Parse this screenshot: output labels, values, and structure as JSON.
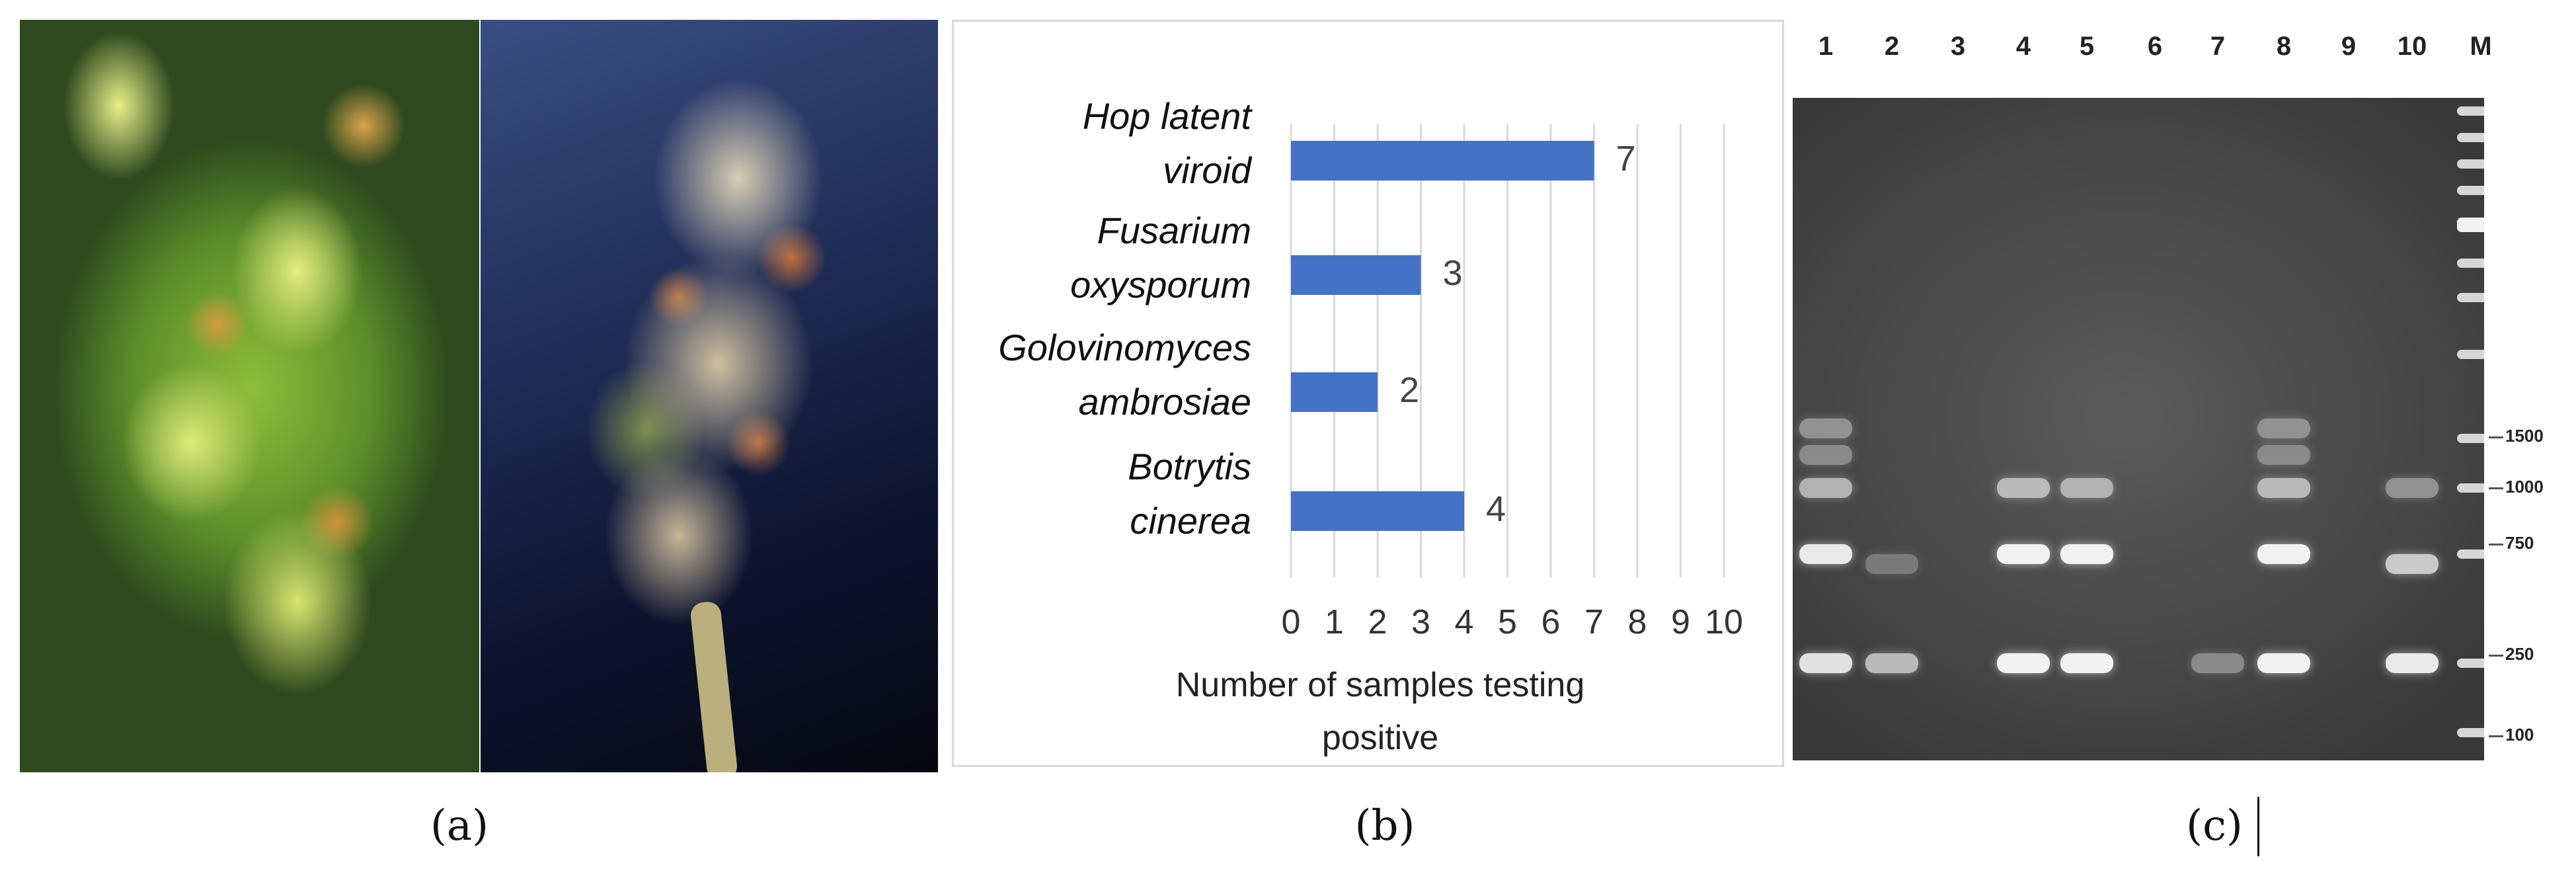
{
  "panel_a": {
    "caption": "(a)",
    "photos": [
      "cannabis-plant-photo",
      "dried-bud-photo"
    ]
  },
  "panel_b": {
    "caption": "(b)",
    "chart_data": {
      "type": "bar",
      "orientation": "horizontal",
      "categories": [
        [
          "Hop latent",
          "viroid"
        ],
        [
          "Fusarium",
          "oxysporum"
        ],
        [
          "Golovinomyces",
          "ambrosiae"
        ],
        [
          "Botrytis",
          "cinerea"
        ]
      ],
      "values": [
        7,
        3,
        2,
        4
      ],
      "data_labels": [
        "7",
        "3",
        "2",
        "4"
      ],
      "xlabel": [
        "Number of samples testing",
        "positive"
      ],
      "xlim": [
        0,
        10
      ],
      "xticks": [
        "0",
        "1",
        "2",
        "3",
        "4",
        "5",
        "6",
        "7",
        "8",
        "9",
        "10"
      ],
      "grid": "vertical",
      "bar_color": "#4472c4",
      "title": ""
    }
  },
  "panel_c": {
    "caption": "(c)",
    "lane_labels": [
      "1",
      "2",
      "3",
      "4",
      "5",
      "6",
      "7",
      "8",
      "9",
      "10",
      "M"
    ],
    "ladder_labels": [
      "1500",
      "1000",
      "750",
      "250",
      "100"
    ]
  }
}
